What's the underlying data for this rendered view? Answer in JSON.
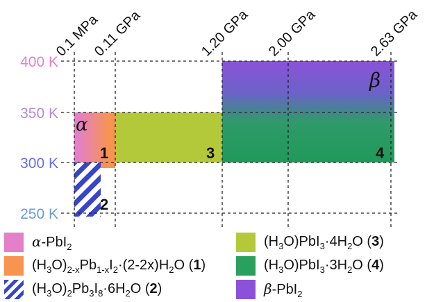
{
  "pressure_labels": [
    "0.1 MPa",
    "0.11 GPa",
    "1.20 GPa",
    "2.00 GPa",
    "2.63 GPa"
  ],
  "temperature_labels": [
    "400 K",
    "350 K",
    "300 K",
    "250 K"
  ],
  "colors": {
    "alpha_pink": "#e47fc9",
    "phase1_orange": "#f7944f",
    "phase3_lime": "#b3c93a",
    "phase4_green": "#29a05b",
    "beta_purple": "#8b52d9",
    "hatch_blue": "#3844c9",
    "temp_400": "#e77ed0",
    "temp_350": "#b58ad9",
    "temp_300": "#6a6ee8",
    "temp_250": "#6c9be0"
  },
  "regions": {
    "alpha_label": "α",
    "beta_label": "β",
    "phase1_number": "1",
    "phase2_number": "2",
    "phase3_number": "3",
    "phase4_number": "4"
  },
  "legend": {
    "alpha": {
      "prefix": "α",
      "text": "-PbI",
      "sub": "2"
    },
    "phase1": {
      "t1": "(H",
      "s1": "3",
      "t2": "O)",
      "s2": "2-x",
      "t3": "Pb",
      "s3": "1-x",
      "t4": "I",
      "s4": "2",
      "t5": "·(2-2x)H",
      "s5": "2",
      "t6": "O (",
      "num": "1",
      "t7": ")"
    },
    "phase2": {
      "t1": "(H",
      "s1": "3",
      "t2": "O)",
      "s2": "2",
      "t3": "Pb",
      "s3": "3",
      "t4": "I",
      "s4": "8",
      "t5": "·6H",
      "s5": "2",
      "t6": "O (",
      "num": "2",
      "t7": ")"
    },
    "phase3": {
      "t1": "(H",
      "s1": "3",
      "t2": "O)PbI",
      "s2": "3",
      "t3": "·4H",
      "s3": "2",
      "t4": "O (",
      "num": "3",
      "t5": ")"
    },
    "phase4": {
      "t1": "(H",
      "s1": "3",
      "t2": "O)PbI",
      "s2": "3",
      "t3": "·3H",
      "s3": "2",
      "t4": "O (",
      "num": "4",
      "t5": ")"
    },
    "beta": {
      "prefix": "β",
      "text": "-PbI",
      "sub": "2"
    }
  }
}
